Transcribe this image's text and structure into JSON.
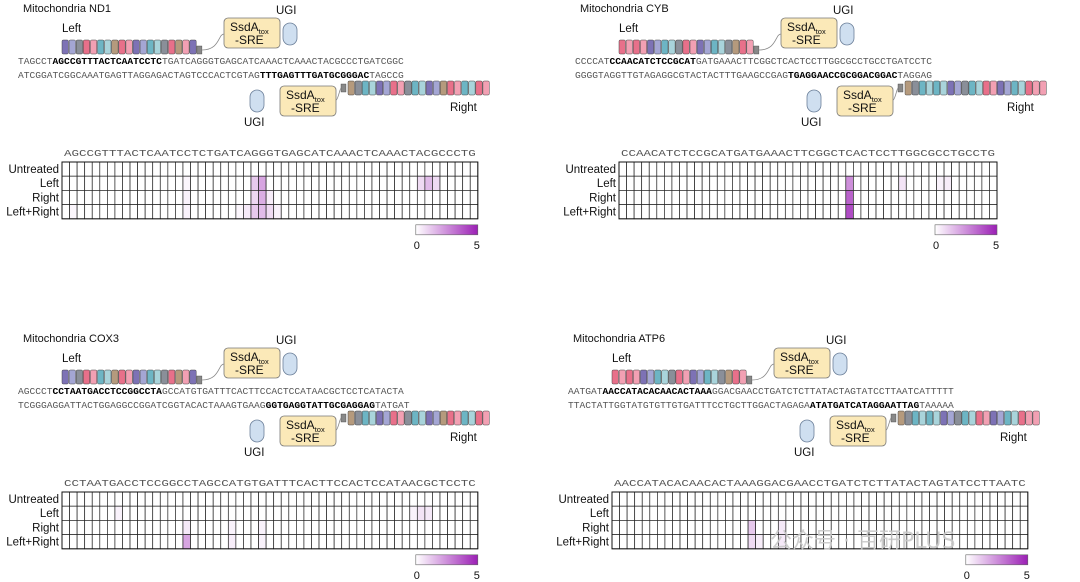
{
  "panels": [
    {
      "title": "Mitochondria ND1",
      "top_seq": {
        "pre": "TAGCCT",
        "bold": "AGCCGTTTACTCAATCCTC",
        "post": "TGATCAGGGTGAGCATCAAACTCAAACTACGCCCTGATCGGC"
      },
      "bottom_seq": {
        "pre": "ATCGGATCGGCAAATGAGTTAGGAGACTAGTCCCACTCGTAG",
        "bold": "TTTGAGTTTGATGCGGGAC",
        "post": "TAGCCG"
      },
      "left_label": "Left",
      "right_label": "Right",
      "ugi_label": "UGI",
      "enzyme_label": {
        "main": "SsdA",
        "sub": "tox",
        "line2": "-SRE"
      },
      "heat_seq": "AGCCGTTTACTCAATCCTCTGATCAGGGTGAGCATCAAACTCAAACTACGCCCTG",
      "rows": [
        "Untreated",
        "Left",
        "Right",
        "Left+Right"
      ],
      "legend": {
        "min": "0",
        "max": "5"
      },
      "heat_values": [
        [
          0,
          0,
          0,
          0,
          0,
          0,
          0,
          0,
          0,
          0,
          0,
          0,
          0,
          0,
          0,
          0,
          0,
          0,
          0,
          0,
          0,
          0,
          0,
          0,
          0,
          0,
          0,
          0,
          0,
          0,
          0,
          0,
          0,
          0,
          0,
          0,
          0,
          0,
          0,
          0,
          0,
          0,
          0,
          0,
          0,
          0,
          0,
          0,
          0,
          0,
          0,
          0,
          0,
          0,
          0
        ],
        [
          0,
          0,
          0,
          0,
          0,
          0,
          0,
          0,
          0,
          0,
          0,
          0,
          0,
          0,
          0,
          0,
          0.2,
          0,
          0,
          0,
          0,
          0,
          0,
          0,
          0,
          1.2,
          2.0,
          0,
          0,
          0,
          0,
          0,
          0,
          0,
          0,
          0,
          0,
          0,
          0,
          0,
          0,
          0,
          0,
          0,
          0,
          0,
          0,
          0.8,
          1.5,
          0.8,
          0,
          0,
          0,
          0,
          0
        ],
        [
          0,
          0,
          0,
          0,
          0,
          0,
          0,
          0,
          0,
          0,
          0,
          0,
          0,
          0,
          0,
          0,
          0.3,
          0,
          0,
          0,
          0,
          0,
          0,
          0,
          0,
          0.9,
          1.8,
          0.4,
          0,
          0,
          0,
          0,
          0,
          0,
          0,
          0,
          0,
          0,
          0,
          0,
          0,
          0,
          0,
          0,
          0,
          0,
          0,
          0,
          0,
          0,
          0,
          0,
          0,
          0,
          0
        ],
        [
          0,
          0.2,
          0,
          0,
          0,
          0,
          0,
          0,
          0,
          0,
          0,
          0,
          0,
          0,
          0,
          0,
          0.3,
          0,
          0,
          0,
          0,
          0,
          0,
          0.2,
          0.5,
          1.2,
          1.5,
          0.8,
          0.3,
          0,
          0,
          0,
          0,
          0,
          0,
          0,
          0,
          0,
          0,
          0,
          0,
          0,
          0,
          0,
          0,
          0,
          0,
          0,
          0,
          0,
          0,
          0,
          0,
          0,
          0
        ]
      ]
    },
    {
      "title": "Mitochondria CYB",
      "top_seq": {
        "pre": "CCCCAT",
        "bold": "CCAACATCTCCGCAT",
        "post": "GATGAAACTTCGGCTCACTCCTTGGCGCCTGCCTGATCCTC"
      },
      "bottom_seq": {
        "pre": "GGGGTAGGTTGTAGAGGCGTACTACTTTGAAGCCGAG",
        "bold": "TGAGGAACCGCGGACGGAC",
        "post": "TAGGAG"
      },
      "left_label": "Left",
      "right_label": "Right",
      "ugi_label": "UGI",
      "enzyme_label": {
        "main": "SsdA",
        "sub": "tox",
        "line2": "-SRE"
      },
      "heat_seq": "CCAACATCTCCGCATGATGAAACTTCGGCTCACTCCTTGGCGCCTGCCTG",
      "rows": [
        "Untreated",
        "Left",
        "Right",
        "Left+Right"
      ],
      "legend": {
        "min": "0",
        "max": "5"
      },
      "heat_values": [
        [
          0,
          0,
          0,
          0,
          0,
          0,
          0,
          0,
          0,
          0,
          0,
          0,
          0,
          0,
          0,
          0,
          0,
          0,
          0,
          0,
          0,
          0,
          0,
          0,
          0,
          0,
          0,
          0,
          0,
          0,
          0,
          0,
          0,
          0,
          0,
          0,
          0,
          0,
          0,
          0,
          0,
          0,
          0,
          0,
          0,
          0,
          0,
          0,
          0,
          0
        ],
        [
          0,
          0,
          0,
          0,
          0,
          0,
          0,
          0,
          0,
          0,
          0,
          0,
          0,
          0,
          0,
          0,
          0,
          0,
          0,
          0,
          0,
          0,
          0,
          0,
          0,
          0,
          0,
          0,
          0,
          0,
          2.5,
          0,
          0,
          0,
          0,
          0,
          0,
          0.6,
          0,
          0,
          0,
          0,
          0.3,
          0.4,
          0,
          0,
          0,
          0,
          0,
          0
        ],
        [
          0,
          0,
          0,
          0,
          0,
          0,
          0,
          0,
          0,
          0,
          0,
          0,
          0,
          0,
          0,
          0,
          0,
          0,
          0,
          0,
          0,
          0,
          0,
          0,
          0,
          0,
          0,
          0,
          0,
          0,
          3.5,
          0,
          0,
          0,
          0,
          0,
          0,
          0,
          0,
          0,
          0,
          0,
          0,
          0,
          0,
          0,
          0,
          0,
          0,
          0
        ],
        [
          0,
          0,
          0,
          0,
          0,
          0,
          0,
          0,
          0,
          0,
          0,
          0,
          0,
          0,
          0,
          0,
          0,
          0,
          0,
          0,
          0,
          0,
          0,
          0,
          0,
          0,
          0,
          0,
          0,
          0,
          4.0,
          0,
          0,
          0,
          0,
          0,
          0,
          0,
          0,
          0,
          0,
          0,
          0,
          0,
          0,
          0,
          0,
          0,
          0,
          0
        ]
      ]
    },
    {
      "title": "Mitochondria COX3",
      "top_seq": {
        "pre": "AGCCCT",
        "bold": "CCTAATGACCTCCGGCCTA",
        "post": "GCCATGTGATTTCACTTCCACTCCATAACGCTCCTCATACTA"
      },
      "bottom_seq": {
        "pre": "TCGGGAGGATTACTGGAGGCCGGATCGGTACACTAAAGTGAAG",
        "bold": "GGTGAGGTATTGCGAGGAG",
        "post": "TATGAT"
      },
      "left_label": "Left",
      "right_label": "Right",
      "ugi_label": "UGI",
      "enzyme_label": {
        "main": "SsdA",
        "sub": "tox",
        "line2": "-SRE"
      },
      "heat_seq": "CCTAATGACCTCCGGCCTAGCCATGTGATTTCACTTCCACTCCATAACGCTCCTC",
      "rows": [
        "Untreated",
        "Left",
        "Right",
        "Left+Right"
      ],
      "legend": {
        "min": "0",
        "max": "5"
      },
      "heat_values": [
        [
          0,
          0,
          0,
          0,
          0,
          0,
          0,
          0,
          0,
          0,
          0,
          0,
          0,
          0,
          0,
          0,
          0,
          0,
          0,
          0,
          0,
          0,
          0,
          0,
          0,
          0,
          0,
          0,
          0,
          0,
          0,
          0,
          0,
          0,
          0,
          0,
          0,
          0,
          0,
          0,
          0,
          0,
          0,
          0,
          0,
          0,
          0,
          0,
          0,
          0,
          0,
          0,
          0,
          0,
          0
        ],
        [
          0,
          0,
          0,
          0,
          0,
          0,
          0,
          0.3,
          0,
          0,
          0,
          0,
          0,
          0,
          0,
          0,
          0,
          0,
          0,
          0,
          0,
          0,
          0,
          0,
          0,
          0,
          0,
          0,
          0,
          0,
          0,
          0,
          0,
          0,
          0,
          0,
          0,
          0,
          0,
          0,
          0,
          0,
          0,
          0,
          0,
          0,
          0.3,
          0.6,
          0.5,
          0,
          0,
          0,
          0,
          0,
          0
        ],
        [
          0,
          0,
          0,
          0,
          0,
          0,
          0,
          0,
          0,
          0,
          0,
          0,
          0,
          0,
          0,
          0,
          0.5,
          0,
          0,
          0,
          0,
          0,
          0.3,
          0,
          0,
          0,
          0.3,
          0,
          0,
          0,
          0,
          0,
          0,
          0,
          0,
          0,
          0,
          0,
          0,
          0,
          0,
          0,
          0,
          0,
          0,
          0,
          0,
          0,
          0,
          0,
          0,
          0,
          0,
          0,
          0
        ],
        [
          0,
          0,
          0,
          0,
          0,
          0,
          0,
          0,
          0,
          0,
          0,
          0,
          0,
          0,
          0,
          0,
          2.0,
          0,
          0,
          0,
          0,
          0,
          0.4,
          0,
          0,
          0,
          0.3,
          0,
          0,
          0,
          0,
          0,
          0,
          0,
          0,
          0,
          0,
          0,
          0,
          0,
          0,
          0,
          0,
          0,
          0,
          0,
          0,
          0,
          0,
          0,
          0,
          0,
          0,
          0,
          0
        ]
      ]
    },
    {
      "title": "Mitochondria ATP6",
      "top_seq": {
        "pre": "AATGAT",
        "bold": "AACCATACACAACACTAAA",
        "post": "GGACGAACCTGATCTCTTATACTAGTATCCTTAATCATTTTT"
      },
      "bottom_seq": {
        "pre": "TTACTATTGGTATGTGTTGTGATTTCCTGCTTGGACTAGAGA",
        "bold": "ATATGATCATAGGAATTAG",
        "post": "TAAAAA"
      },
      "left_label": "Left",
      "right_label": "Right",
      "ugi_label": "UGI",
      "enzyme_label": {
        "main": "SsdA",
        "sub": "tox",
        "line2": "-SRE"
      },
      "heat_seq": "AACCATACACAACACTAAAGGACGAACCTGATCTCTTATACTAGTATCCTTAATC",
      "rows": [
        "Untreated",
        "Left",
        "Right",
        "Left+Right"
      ],
      "legend": {
        "min": "0",
        "max": "5"
      },
      "heat_values": [
        [
          0,
          0,
          0,
          0,
          0,
          0,
          0,
          0,
          0,
          0,
          0,
          0,
          0,
          0,
          0,
          0,
          0,
          0,
          0,
          0,
          0,
          0,
          0,
          0,
          0,
          0,
          0,
          0,
          0,
          0,
          0,
          0,
          0,
          0,
          0,
          0,
          0,
          0,
          0,
          0,
          0,
          0,
          0,
          0,
          0,
          0,
          0,
          0,
          0,
          0,
          0,
          0,
          0,
          0,
          0
        ],
        [
          0,
          0,
          0,
          0,
          0,
          0,
          0,
          0,
          0,
          0,
          0,
          0,
          0,
          0,
          0,
          0,
          0,
          0,
          0,
          0,
          0,
          0,
          0,
          0,
          0,
          0,
          0,
          0,
          0,
          0,
          0,
          0,
          0,
          0,
          0,
          0,
          0,
          0,
          0,
          0,
          0,
          0,
          0,
          0,
          0,
          0,
          0,
          0,
          0,
          0,
          0,
          0,
          0,
          0,
          0
        ],
        [
          0,
          0,
          0,
          0,
          0,
          0,
          0,
          0,
          0,
          0,
          0,
          0,
          0,
          0,
          0,
          0,
          0,
          0,
          1.2,
          0,
          0,
          0,
          0.5,
          0,
          0,
          0,
          0,
          0,
          0,
          0,
          0,
          0,
          0,
          0,
          0,
          0,
          0,
          0,
          0,
          0,
          0,
          0,
          0,
          0,
          0,
          0,
          0,
          0,
          0,
          0,
          0,
          0,
          0,
          0,
          0
        ],
        [
          0,
          0,
          0,
          0,
          0,
          0,
          0,
          0,
          0,
          0,
          0,
          0,
          0,
          0,
          0,
          0,
          0,
          0,
          0.8,
          0.4,
          0,
          0,
          0.5,
          0,
          0,
          0,
          0,
          0,
          0,
          0,
          0,
          0,
          0,
          0,
          0,
          0,
          0,
          0,
          0,
          0,
          0,
          0,
          0,
          0,
          0,
          0,
          0,
          0,
          0,
          0,
          0,
          0,
          0,
          0,
          0
        ]
      ]
    }
  ],
  "watermark": "公众号 · 百研PLUS",
  "colors": {
    "heat_max": "#9b1fb5",
    "heat_min": "#ffffff",
    "enzyme_box": "#fbe9b8",
    "ugi_fill": "#cfdff0",
    "tale_palette": [
      "#7d72b5",
      "#a4a6d4",
      "#8a8f99",
      "#e8708a",
      "#f2a0b3",
      "#6db5c4",
      "#a9d4db",
      "#b59a7d"
    ]
  },
  "left_tale_pattern": [
    0,
    1,
    2,
    3,
    4,
    5,
    6,
    7,
    3,
    4,
    0,
    1,
    5,
    6,
    2,
    3,
    7,
    4,
    0
  ],
  "right_tale_pattern": [
    7,
    2,
    5,
    6,
    0,
    1,
    3,
    4,
    2,
    5,
    6,
    0,
    1,
    7,
    3,
    4,
    5,
    6,
    3,
    4
  ],
  "left_tale_pattern_b": [
    3,
    4,
    3,
    4,
    0,
    1,
    5,
    6,
    2,
    3,
    4,
    0,
    1,
    5,
    6,
    2,
    7,
    3,
    4
  ],
  "right_tale_pattern_b": [
    7,
    2,
    5,
    6,
    5,
    6,
    0,
    1,
    2,
    5,
    6,
    3,
    4,
    0,
    1,
    5,
    6,
    3,
    4,
    4
  ]
}
